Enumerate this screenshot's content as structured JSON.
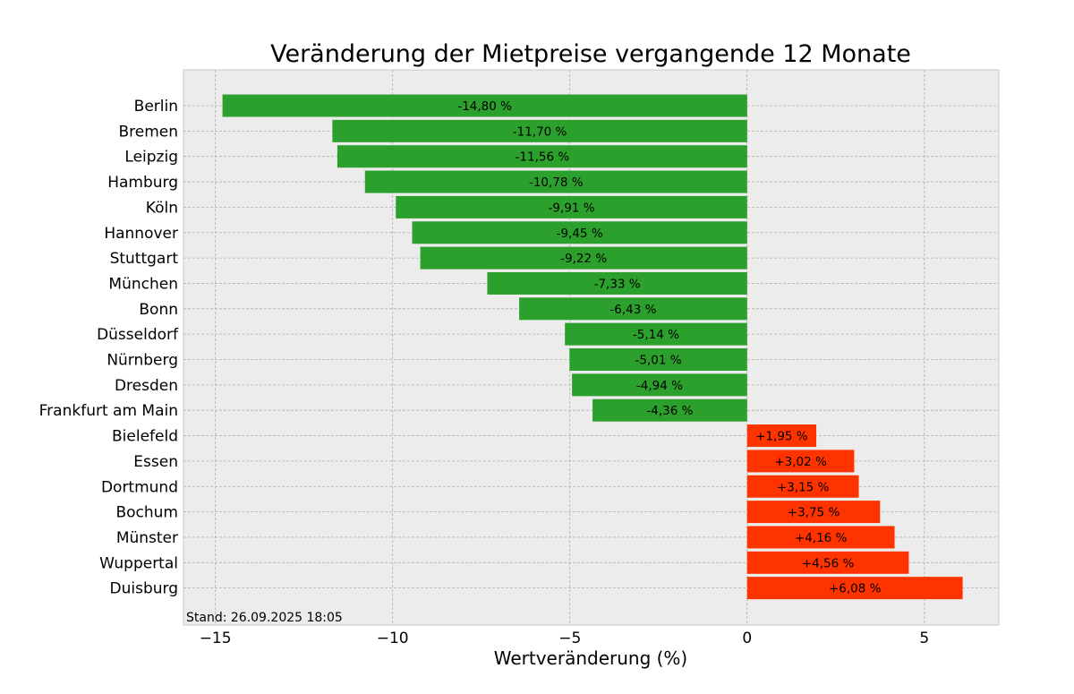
{
  "chart_data": {
    "type": "bar",
    "orientation": "horizontal",
    "title": "Veränderung der Mietpreise vergangende 12 Monate",
    "xlabel": "Wertveränderung (%)",
    "ylabel": "",
    "xlim": [
      -15.9,
      7.1
    ],
    "xticks": [
      -15,
      -10,
      -5,
      0,
      5
    ],
    "xtick_labels": [
      "−15",
      "−10",
      "−5",
      "0",
      "5"
    ],
    "grid": true,
    "footnote": "Stand: 26.09.2025 18:05",
    "colors": {
      "negative": "#2ca02c",
      "positive": "#ff3300",
      "background": "#ececec",
      "grid": "#b0b0b0"
    },
    "categories": [
      "Berlin",
      "Bremen",
      "Leipzig",
      "Hamburg",
      "Köln",
      "Hannover",
      "Stuttgart",
      "München",
      "Bonn",
      "Düsseldorf",
      "Nürnberg",
      "Dresden",
      "Frankfurt am Main",
      "Bielefeld",
      "Essen",
      "Dortmund",
      "Bochum",
      "Münster",
      "Wuppertal",
      "Duisburg"
    ],
    "values": [
      -14.8,
      -11.7,
      -11.56,
      -10.78,
      -9.91,
      -9.45,
      -9.22,
      -7.33,
      -6.43,
      -5.14,
      -5.01,
      -4.94,
      -4.36,
      1.95,
      3.02,
      3.15,
      3.75,
      4.16,
      4.56,
      6.08
    ],
    "value_labels": [
      "-14,80 %",
      "-11,70 %",
      "-11,56 %",
      "-10,78 %",
      "-9,91 %",
      "-9,45 %",
      "-9,22 %",
      "-7,33 %",
      "-6,43 %",
      "-5,14 %",
      "-5,01 %",
      "-4,94 %",
      "-4,36 %",
      "+1,95 %",
      "+3,02 %",
      "+3,15 %",
      "+3,75 %",
      "+4,16 %",
      "+4,56 %",
      "+6,08 %"
    ]
  }
}
